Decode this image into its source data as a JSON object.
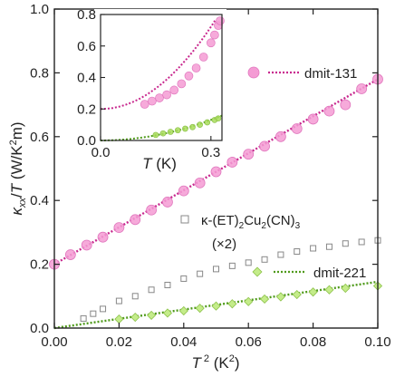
{
  "chart_data": [
    {
      "panel": "main",
      "type": "scatter",
      "xlabel": "T² (K²)",
      "ylabel": "κ_xx/T (W/K²m)",
      "xlim": [
        0,
        0.1
      ],
      "ylim": [
        0,
        1.0
      ],
      "x_ticks": [
        "0.00",
        "0.02",
        "0.04",
        "0.06",
        "0.08",
        "0.10"
      ],
      "y_ticks": [
        "0.0",
        "0.2",
        "0.4",
        "0.6",
        "0.8",
        "1.0"
      ],
      "series": [
        {
          "name": "dmit-131",
          "marker": "circle",
          "color": "#f49bd4",
          "fit_color": "#c8288e",
          "fit": [
            [
              0.0,
              0.2
            ],
            [
              0.1,
              0.78
            ]
          ],
          "points": [
            [
              0.0,
              0.2
            ],
            [
              0.005,
              0.23
            ],
            [
              0.01,
              0.26
            ],
            [
              0.015,
              0.285
            ],
            [
              0.02,
              0.315
            ],
            [
              0.025,
              0.34
            ],
            [
              0.03,
              0.37
            ],
            [
              0.035,
              0.395
            ],
            [
              0.04,
              0.43
            ],
            [
              0.045,
              0.455
            ],
            [
              0.05,
              0.49
            ],
            [
              0.055,
              0.52
            ],
            [
              0.06,
              0.545
            ],
            [
              0.065,
              0.57
            ],
            [
              0.07,
              0.6
            ],
            [
              0.075,
              0.625
            ],
            [
              0.08,
              0.655
            ],
            [
              0.085,
              0.68
            ],
            [
              0.09,
              0.7
            ],
            [
              0.095,
              0.75
            ],
            [
              0.1,
              0.78
            ]
          ]
        },
        {
          "name": "κ-(ET)₂Cu₂(CN)₃ (×2)",
          "marker": "square",
          "color": "#888888",
          "points": [
            [
              0.009,
              0.03
            ],
            [
              0.012,
              0.045
            ],
            [
              0.015,
              0.06
            ],
            [
              0.02,
              0.085
            ],
            [
              0.025,
              0.1
            ],
            [
              0.03,
              0.12
            ],
            [
              0.035,
              0.135
            ],
            [
              0.04,
              0.155
            ],
            [
              0.045,
              0.17
            ],
            [
              0.05,
              0.185
            ],
            [
              0.055,
              0.195
            ],
            [
              0.06,
              0.205
            ],
            [
              0.065,
              0.215
            ],
            [
              0.07,
              0.23
            ],
            [
              0.075,
              0.24
            ],
            [
              0.08,
              0.25
            ],
            [
              0.085,
              0.255
            ],
            [
              0.09,
              0.265
            ],
            [
              0.095,
              0.27
            ],
            [
              0.1,
              0.275
            ]
          ]
        },
        {
          "name": "dmit-221",
          "marker": "diamond",
          "color": "#a8dc5a",
          "fit_color": "#4f9a1a",
          "fit": [
            [
              0.0,
              0.0
            ],
            [
              0.1,
              0.145
            ]
          ],
          "points": [
            [
              0.02,
              0.028
            ],
            [
              0.025,
              0.034
            ],
            [
              0.03,
              0.04
            ],
            [
              0.035,
              0.047
            ],
            [
              0.04,
              0.054
            ],
            [
              0.045,
              0.062
            ],
            [
              0.05,
              0.069
            ],
            [
              0.055,
              0.076
            ],
            [
              0.06,
              0.083
            ],
            [
              0.065,
              0.091
            ],
            [
              0.07,
              0.098
            ],
            [
              0.075,
              0.105
            ],
            [
              0.08,
              0.113
            ],
            [
              0.085,
              0.12
            ],
            [
              0.09,
              0.125
            ],
            [
              0.1,
              0.132
            ]
          ]
        }
      ],
      "legend_labels": {
        "dmit131": "dmit-131",
        "et_pre": "κ-(ET)",
        "et_sub1": "2",
        "et_mid": "Cu",
        "et_sub2": "2",
        "et_post": "(CN)",
        "et_sub3": "3",
        "et_scale": "(×2)",
        "dmit221": "dmit-221"
      }
    },
    {
      "panel": "inset",
      "type": "scatter",
      "xlabel": "T (K)",
      "xlim": [
        0,
        0.33
      ],
      "ylim": [
        0,
        0.8
      ],
      "x_ticks": [
        "0.0",
        "0.3"
      ],
      "y_ticks": [
        "0.0",
        "0.2",
        "0.4",
        "0.6",
        "0.8"
      ],
      "series": [
        {
          "name": "dmit-131",
          "color": "#f49bd4",
          "fit_color": "#c8288e",
          "points": [
            [
              0.12,
              0.23
            ],
            [
              0.14,
              0.25
            ],
            [
              0.16,
              0.27
            ],
            [
              0.18,
              0.29
            ],
            [
              0.2,
              0.32
            ],
            [
              0.22,
              0.36
            ],
            [
              0.24,
              0.41
            ],
            [
              0.26,
              0.46
            ],
            [
              0.28,
              0.53
            ],
            [
              0.3,
              0.62
            ],
            [
              0.31,
              0.67
            ],
            [
              0.32,
              0.73
            ],
            [
              0.325,
              0.76
            ]
          ]
        },
        {
          "name": "dmit-221",
          "color": "#a8dc5a",
          "fit_color": "#4f9a1a",
          "points": [
            [
              0.15,
              0.035
            ],
            [
              0.17,
              0.045
            ],
            [
              0.19,
              0.055
            ],
            [
              0.21,
              0.065
            ],
            [
              0.23,
              0.075
            ],
            [
              0.25,
              0.085
            ],
            [
              0.27,
              0.1
            ],
            [
              0.29,
              0.115
            ],
            [
              0.31,
              0.13
            ],
            [
              0.32,
              0.14
            ]
          ]
        }
      ]
    }
  ]
}
